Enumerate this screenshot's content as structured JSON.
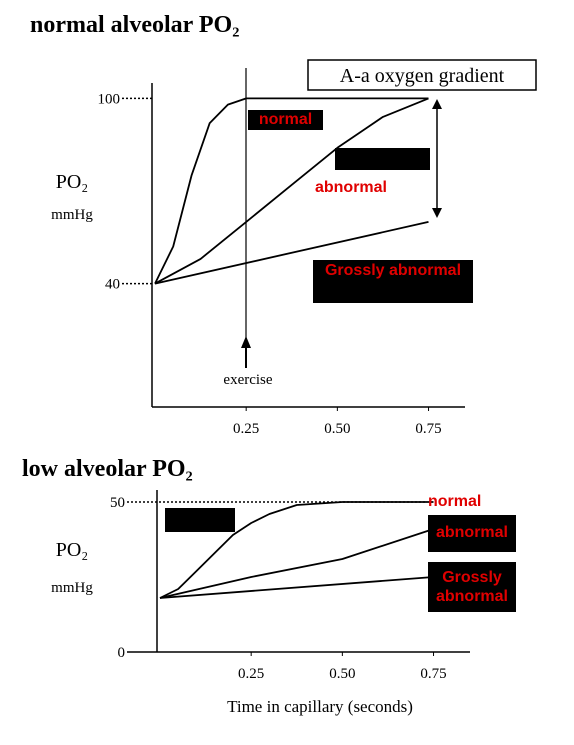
{
  "chart_data": [
    {
      "type": "line",
      "title": "normal alveolar PO₂",
      "ylabel": "PO₂",
      "yunit": "mmHg",
      "annotations": [
        "A-a oxygen gradient",
        "exercise"
      ],
      "xlim": [
        0,
        0.85
      ],
      "ylim": [
        0,
        105
      ],
      "xticks": [
        0.25,
        {
          "value": 0.5,
          "label": "0.50"
        },
        0.75
      ],
      "yticks": [
        40,
        100
      ],
      "series": [
        {
          "name": "normal",
          "color": "#000000",
          "x": [
            0,
            0.05,
            0.1,
            0.15,
            0.2,
            0.25,
            0.75
          ],
          "values": [
            40,
            52,
            75,
            92,
            98,
            100,
            100
          ]
        },
        {
          "name": "abnormal",
          "color": "#000000",
          "x": [
            0,
            0.125,
            0.25,
            0.375,
            0.5,
            0.625,
            0.75
          ],
          "values": [
            40,
            48,
            60,
            72,
            84,
            94,
            100
          ]
        },
        {
          "name": "Grossly abnormal",
          "color": "#000000",
          "x": [
            0,
            0.75
          ],
          "values": [
            40,
            60
          ]
        }
      ]
    },
    {
      "type": "line",
      "title": "low alveolar PO₂",
      "ylabel": "PO₂",
      "yunit": "mmHg",
      "xlabel": "Time in capillary (seconds)",
      "xlim": [
        0,
        0.85
      ],
      "ylim": [
        0,
        54
      ],
      "xticks": [
        0.25,
        {
          "value": 0.5,
          "label": "0.50"
        },
        0.75
      ],
      "yticks": [
        0,
        50
      ],
      "series": [
        {
          "name": "normal",
          "color": "#000000",
          "x": [
            0,
            0.05,
            0.1,
            0.15,
            0.2,
            0.25,
            0.3,
            0.375,
            0.5,
            0.75
          ],
          "values": [
            18,
            21,
            27,
            33,
            39,
            43,
            46,
            49,
            50,
            50
          ]
        },
        {
          "name": "abnormal",
          "color": "#000000",
          "x": [
            0,
            0.25,
            0.5,
            0.75
          ],
          "values": [
            18,
            25,
            31,
            41
          ]
        },
        {
          "name": "Grossly abnormal",
          "color": "#000000",
          "x": [
            0,
            0.75
          ],
          "values": [
            18,
            25
          ]
        }
      ]
    }
  ]
}
